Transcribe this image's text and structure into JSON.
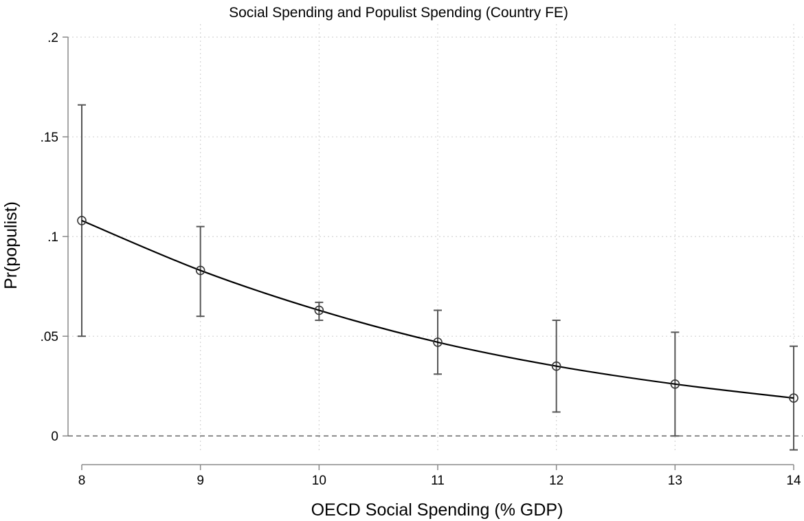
{
  "chart_data": {
    "type": "line",
    "title": "Social Spending and Populist Spending (Country FE)",
    "xlabel": "OECD Social Spending (% GDP)",
    "ylabel": "Pr(populist)",
    "x": [
      8,
      9,
      10,
      11,
      12,
      13,
      14
    ],
    "xticks": [
      "8",
      "9",
      "10",
      "11",
      "12",
      "13",
      "14"
    ],
    "yticks": [
      {
        "value": 0,
        "label": "0"
      },
      {
        "value": 0.05,
        "label": ".05"
      },
      {
        "value": 0.1,
        "label": ".1"
      },
      {
        "value": 0.15,
        "label": ".15"
      },
      {
        "value": 0.2,
        "label": ".2"
      }
    ],
    "xlim": [
      8,
      14
    ],
    "ylim": [
      -0.0075,
      0.2
    ],
    "grid": true,
    "reference_line_y": 0,
    "series": [
      {
        "values": [
          0.108,
          0.083,
          0.063,
          0.047,
          0.035,
          0.026,
          0.019
        ],
        "ci_lower": [
          0.05,
          0.06,
          0.058,
          0.031,
          0.012,
          0.0,
          -0.007
        ],
        "ci_upper": [
          0.166,
          0.105,
          0.067,
          0.063,
          0.058,
          0.052,
          0.045
        ],
        "line_color": "#000000",
        "errorbar_color": "#555555"
      }
    ]
  }
}
